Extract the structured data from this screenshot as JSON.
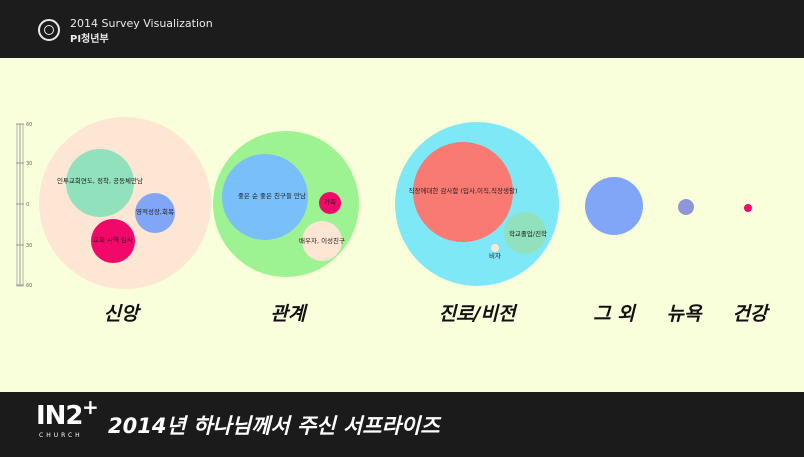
{
  "header": {
    "title": "2014 Survey Visualization",
    "subtitle": "PI청년부",
    "logo": "ring-logo-icon"
  },
  "footer": {
    "brand": "IN2",
    "brand_plus": "+",
    "brand_sub": "CHURCH",
    "title": "2014년 하나님께서 주신 서프라이즈"
  },
  "colors": {
    "background": "#f9ffda",
    "bar": "#1b1b1b"
  },
  "chart_data": {
    "type": "packed-bubble",
    "title": "",
    "y_axis": {
      "ticks": [
        "60",
        "30",
        "0",
        "30",
        "60"
      ]
    },
    "groups": [
      {
        "label": "신앙",
        "color": "#fde6d3",
        "children": [
          {
            "label": "인투교회연도, 정착, 공동체만남",
            "color": "#91e1bc"
          },
          {
            "label": "영적성장,회복",
            "color": "#82a6f7"
          },
          {
            "label": "교회 사역 감사",
            "color": "#f2076b"
          }
        ]
      },
      {
        "label": "관계",
        "color": "#9df391",
        "children": [
          {
            "label": "좋은 순 좋은 친구들 만남",
            "color": "#79bffa"
          },
          {
            "label": "가족",
            "color": "#f2076b"
          },
          {
            "label": "배우자, 이성친구",
            "color": "#fde6d3"
          }
        ]
      },
      {
        "label": "진로/비전",
        "color": "#7fe8f6",
        "children": [
          {
            "label": "직장에대한 감사함 (입사,이직,직장생활)",
            "color": "#f87a72"
          },
          {
            "label": "학교졸업/진학",
            "color": "#91e1bc"
          },
          {
            "label": "비자",
            "color": "#fde6d3"
          }
        ]
      },
      {
        "label": "그 외",
        "color": "#82a6f7",
        "children": []
      },
      {
        "label": "뉴욕",
        "color": "#8f96d8",
        "children": []
      },
      {
        "label": "건강",
        "color": "#f2076b",
        "children": []
      }
    ]
  }
}
